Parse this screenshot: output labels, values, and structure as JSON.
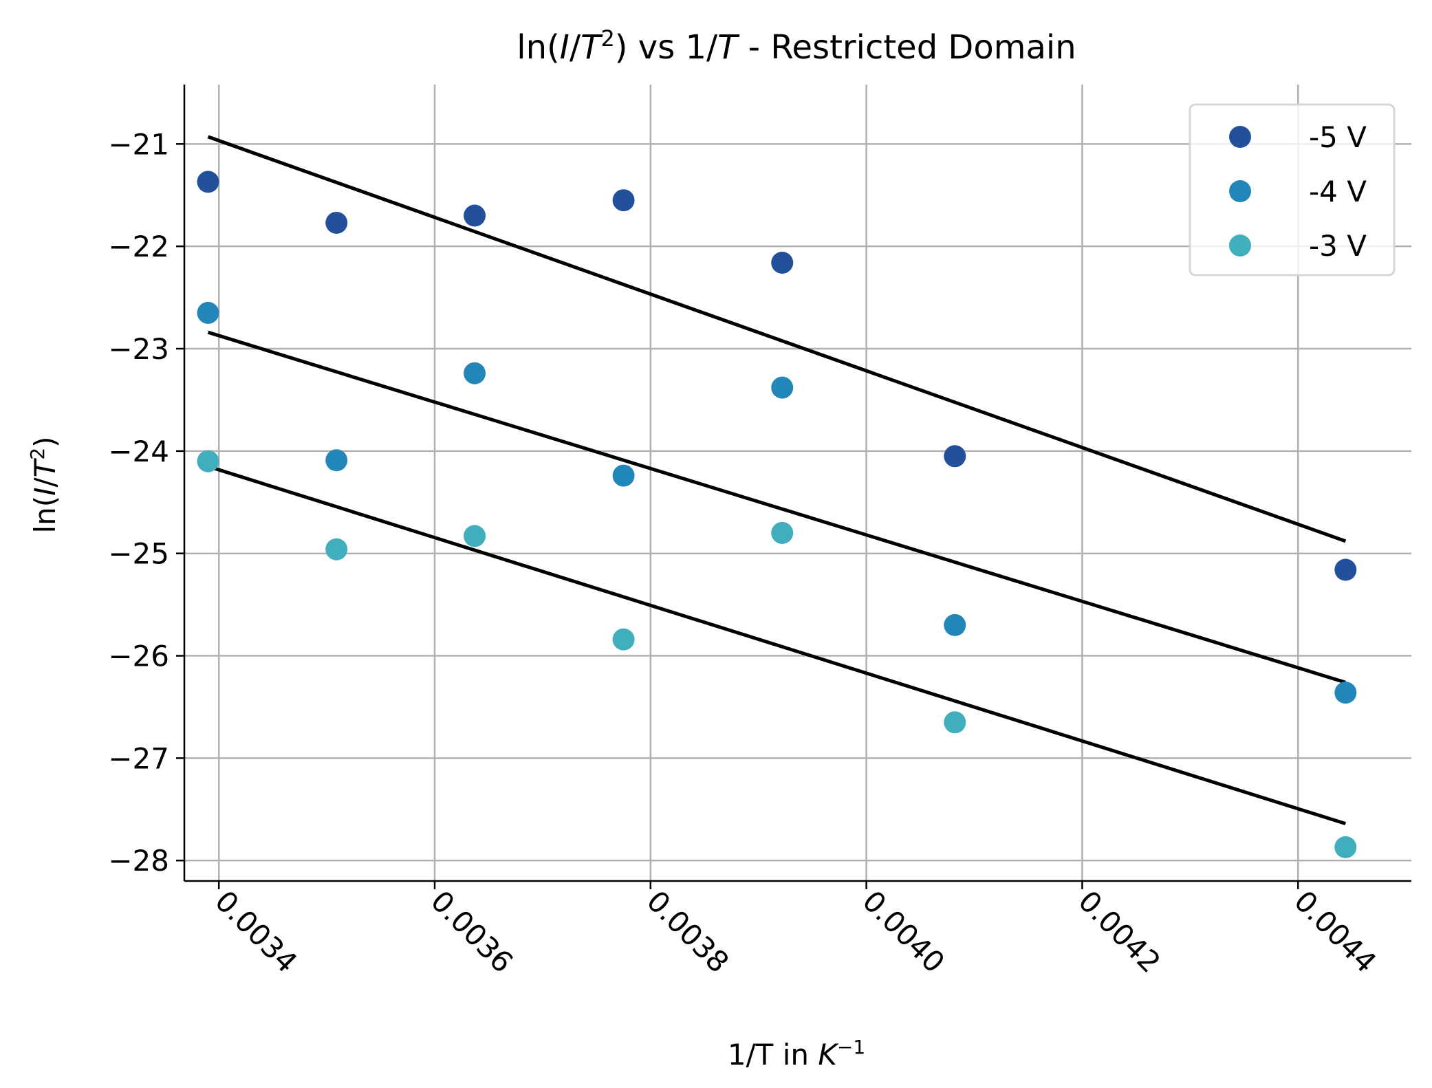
{
  "chart_data": {
    "type": "scatter",
    "title": {
      "prefix": "ln(",
      "italic_1": "I",
      "slash": "/",
      "italic_2": "T",
      "sup": "2",
      "mid": ") vs 1/",
      "italic_3": "T",
      "suffix": " - Restricted Domain"
    },
    "xlabel": {
      "text": "1/T in ",
      "italic": "K",
      "sup": "−1"
    },
    "ylabel": {
      "prefix": "ln(",
      "italic_1": "I",
      "slash": "/",
      "italic_2": "T",
      "sup": "2",
      "suffix": ")"
    },
    "xlim": [
      0.003368,
      0.004505
    ],
    "ylim": [
      -28.2,
      -20.42
    ],
    "xticks": [
      0.0034,
      0.0036,
      0.0038,
      0.004,
      0.0042,
      0.0044
    ],
    "xtick_labels": [
      "0.0034",
      "0.0036",
      "0.0038",
      "0.0040",
      "0.0042",
      "0.0044"
    ],
    "yticks": [
      -21,
      -22,
      -23,
      -24,
      -25,
      -26,
      -27,
      -28
    ],
    "ytick_labels": [
      "−21",
      "−22",
      "−23",
      "−24",
      "−25",
      "−26",
      "−27",
      "−28"
    ],
    "grid": true,
    "legend_position": "top-right",
    "x": [
      0.00339,
      0.003509,
      0.003637,
      0.003775,
      0.003922,
      0.004082,
      0.004444
    ],
    "series": [
      {
        "name": "-5 V",
        "color": "#23509b",
        "values": [
          -21.37,
          -21.77,
          -21.7,
          -21.55,
          -22.16,
          -24.05,
          -25.16
        ],
        "fit": {
          "x": [
            0.00339,
            0.004444
          ],
          "y": [
            -20.93,
            -24.88
          ]
        }
      },
      {
        "name": "-4 V",
        "color": "#2386b9",
        "values": [
          -22.65,
          -24.09,
          -23.24,
          -24.24,
          -23.38,
          -25.7,
          -26.36
        ],
        "fit": {
          "x": [
            0.00339,
            0.004444
          ],
          "y": [
            -22.84,
            -26.26
          ]
        }
      },
      {
        "name": "-3 V",
        "color": "#41aebe",
        "values": [
          -24.1,
          -24.96,
          -24.83,
          -25.84,
          -24.8,
          -26.65,
          -27.87
        ],
        "fit": {
          "x": [
            0.00339,
            0.004444
          ],
          "y": [
            -24.15,
            -27.64
          ]
        }
      }
    ]
  }
}
